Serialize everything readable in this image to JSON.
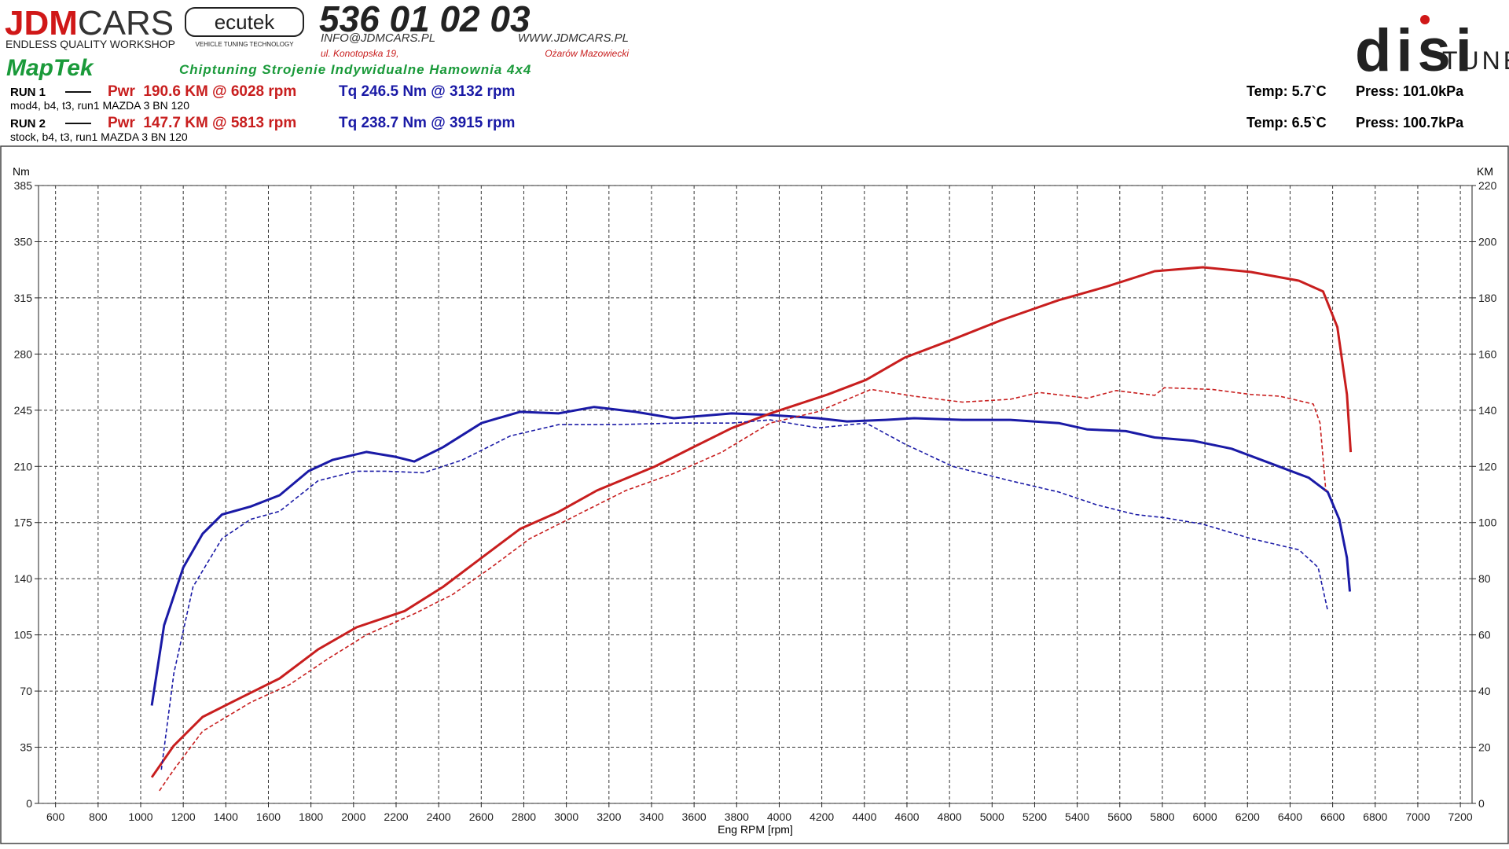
{
  "header": {
    "brand_red": "JDM",
    "brand_black": "CARS",
    "brand_sub": "ENDLESS QUALITY WORKSHOP",
    "ecutek": "ecutek",
    "ecutek_sub": "VEHICLE TUNING TECHNOLOGY",
    "phone": "536 01 02 03",
    "email": "INFO@JDMCARS.PL",
    "www": "WWW.JDMCARS.PL",
    "street": "ul. Konotopska 19,",
    "city": "Ożarów Mazowiecki",
    "maptek": "MapTek",
    "services": "Chiptuning Strojenie Indywidualne Hamownia 4x4",
    "disi": "disi",
    "tune": "TUNE"
  },
  "runs": [
    {
      "label": "RUN 1",
      "desc": "mod4, b4, t3, run1 MAZDA 3 BN 120",
      "pwr": "Pwr  190.6 KM @ 6028 rpm",
      "tq": "Tq 246.5 Nm @ 3132 rpm",
      "temp": "Temp: 5.7`C",
      "press": "Press: 101.0kPa"
    },
    {
      "label": "RUN 2",
      "desc": "stock, b4, t3, run1 MAZDA 3 BN 120",
      "pwr": "Pwr  147.7 KM @ 5813 rpm",
      "tq": "Tq 238.7 Nm @ 3915 rpm",
      "temp": "Temp: 6.5`C",
      "press": "Press: 100.7kPa"
    }
  ],
  "chart_data": {
    "type": "line",
    "x_label": "Eng RPM [rpm]",
    "y_label": "Nm",
    "y2_label": "KM",
    "grid": true,
    "xlim": [
      520,
      7255
    ],
    "ylim": [
      0,
      385
    ],
    "y2lim": [
      0,
      220
    ],
    "xticks": [
      600,
      800,
      1000,
      1200,
      1400,
      1600,
      1800,
      2000,
      2200,
      2400,
      2600,
      2800,
      3000,
      3200,
      3400,
      3600,
      3800,
      4000,
      4200,
      4400,
      4600,
      4800,
      5000,
      5200,
      5400,
      5600,
      5800,
      6000,
      6200,
      6400,
      6600,
      6800,
      7000,
      7200
    ],
    "yticks": [
      0,
      35,
      70,
      105,
      140,
      175,
      210,
      245,
      280,
      315,
      350,
      385
    ],
    "y2ticks": [
      0,
      20,
      40,
      60,
      80,
      100,
      120,
      140,
      160,
      180,
      200,
      220
    ],
    "series": [
      {
        "color": "#1a1aa6",
        "dashed": false,
        "axis": "y",
        "x": [
          1052,
          1110,
          1200,
          1291,
          1382,
          1517,
          1653,
          1788,
          1901,
          2060,
          2195,
          2285,
          2421,
          2601,
          2782,
          2963,
          3130,
          3324,
          3505,
          3776,
          3956,
          4182,
          4318,
          4499,
          4634,
          4860,
          5086,
          5313,
          5448,
          5628,
          5764,
          5944,
          6125,
          6306,
          6487,
          6577,
          6631,
          6667,
          6681
        ],
        "values": [
          61,
          111,
          147,
          168,
          180,
          185,
          192,
          207,
          214,
          219,
          216,
          213,
          222,
          237,
          244,
          243,
          247,
          244,
          240,
          243,
          242,
          240,
          238,
          239,
          240,
          239,
          239,
          237,
          233,
          232,
          228,
          226,
          221,
          212,
          203,
          194,
          177,
          153,
          132
        ]
      },
      {
        "color": "#c81e1e",
        "dashed": false,
        "axis": "y2",
        "x": [
          1052,
          1156,
          1291,
          1472,
          1653,
          1833,
          2014,
          2240,
          2421,
          2601,
          2782,
          2963,
          3143,
          3414,
          3595,
          3776,
          3956,
          4228,
          4408,
          4589,
          4815,
          5041,
          5313,
          5538,
          5764,
          5990,
          6216,
          6442,
          6555,
          6622,
          6667,
          6685
        ],
        "values": [
          9.3,
          20.6,
          30.8,
          37.7,
          44.5,
          54.8,
          62.7,
          68.5,
          77.1,
          87.4,
          97.7,
          103.8,
          111.4,
          119.9,
          126.8,
          133.6,
          138.8,
          145.6,
          150.8,
          158.7,
          165.2,
          172.0,
          179.2,
          184.0,
          189.5,
          190.9,
          189.2,
          186.1,
          182.3,
          169.6,
          145.6,
          125.1
        ]
      },
      {
        "color": "#1a1aa6",
        "dashed": true,
        "axis": "y",
        "x": [
          1097,
          1156,
          1246,
          1382,
          1517,
          1653,
          1833,
          2014,
          2150,
          2330,
          2511,
          2737,
          2963,
          3234,
          3505,
          3776,
          3956,
          4182,
          4408,
          4589,
          4815,
          5086,
          5313,
          5493,
          5673,
          5809,
          5990,
          6216,
          6442,
          6532,
          6577
        ],
        "values": [
          21,
          81,
          135,
          165,
          177,
          182,
          201,
          207,
          207,
          206,
          214,
          229,
          236,
          236,
          237,
          237,
          239,
          234,
          237,
          224,
          210,
          201,
          194,
          186,
          180,
          178,
          174,
          165,
          158,
          147,
          120
        ]
      },
      {
        "color": "#c81e1e",
        "dashed": true,
        "axis": "y2",
        "x": [
          1088,
          1156,
          1291,
          1517,
          1698,
          1878,
          2060,
          2285,
          2466,
          2647,
          2827,
          3053,
          3279,
          3505,
          3731,
          3956,
          4182,
          4431,
          4634,
          4860,
          5086,
          5222,
          5448,
          5583,
          5764,
          5809,
          6035,
          6216,
          6351,
          6509,
          6541,
          6568
        ],
        "values": [
          4.5,
          12.0,
          25.7,
          36.0,
          42.2,
          51.4,
          60.0,
          67.5,
          74.4,
          84.0,
          94.2,
          102.8,
          111.4,
          117.5,
          125.1,
          135.4,
          139.5,
          147.4,
          145.0,
          142.9,
          143.9,
          146.3,
          144.3,
          147.0,
          145.3,
          148.0,
          147.4,
          145.6,
          145.0,
          142.2,
          135.4,
          111.4
        ]
      }
    ]
  }
}
